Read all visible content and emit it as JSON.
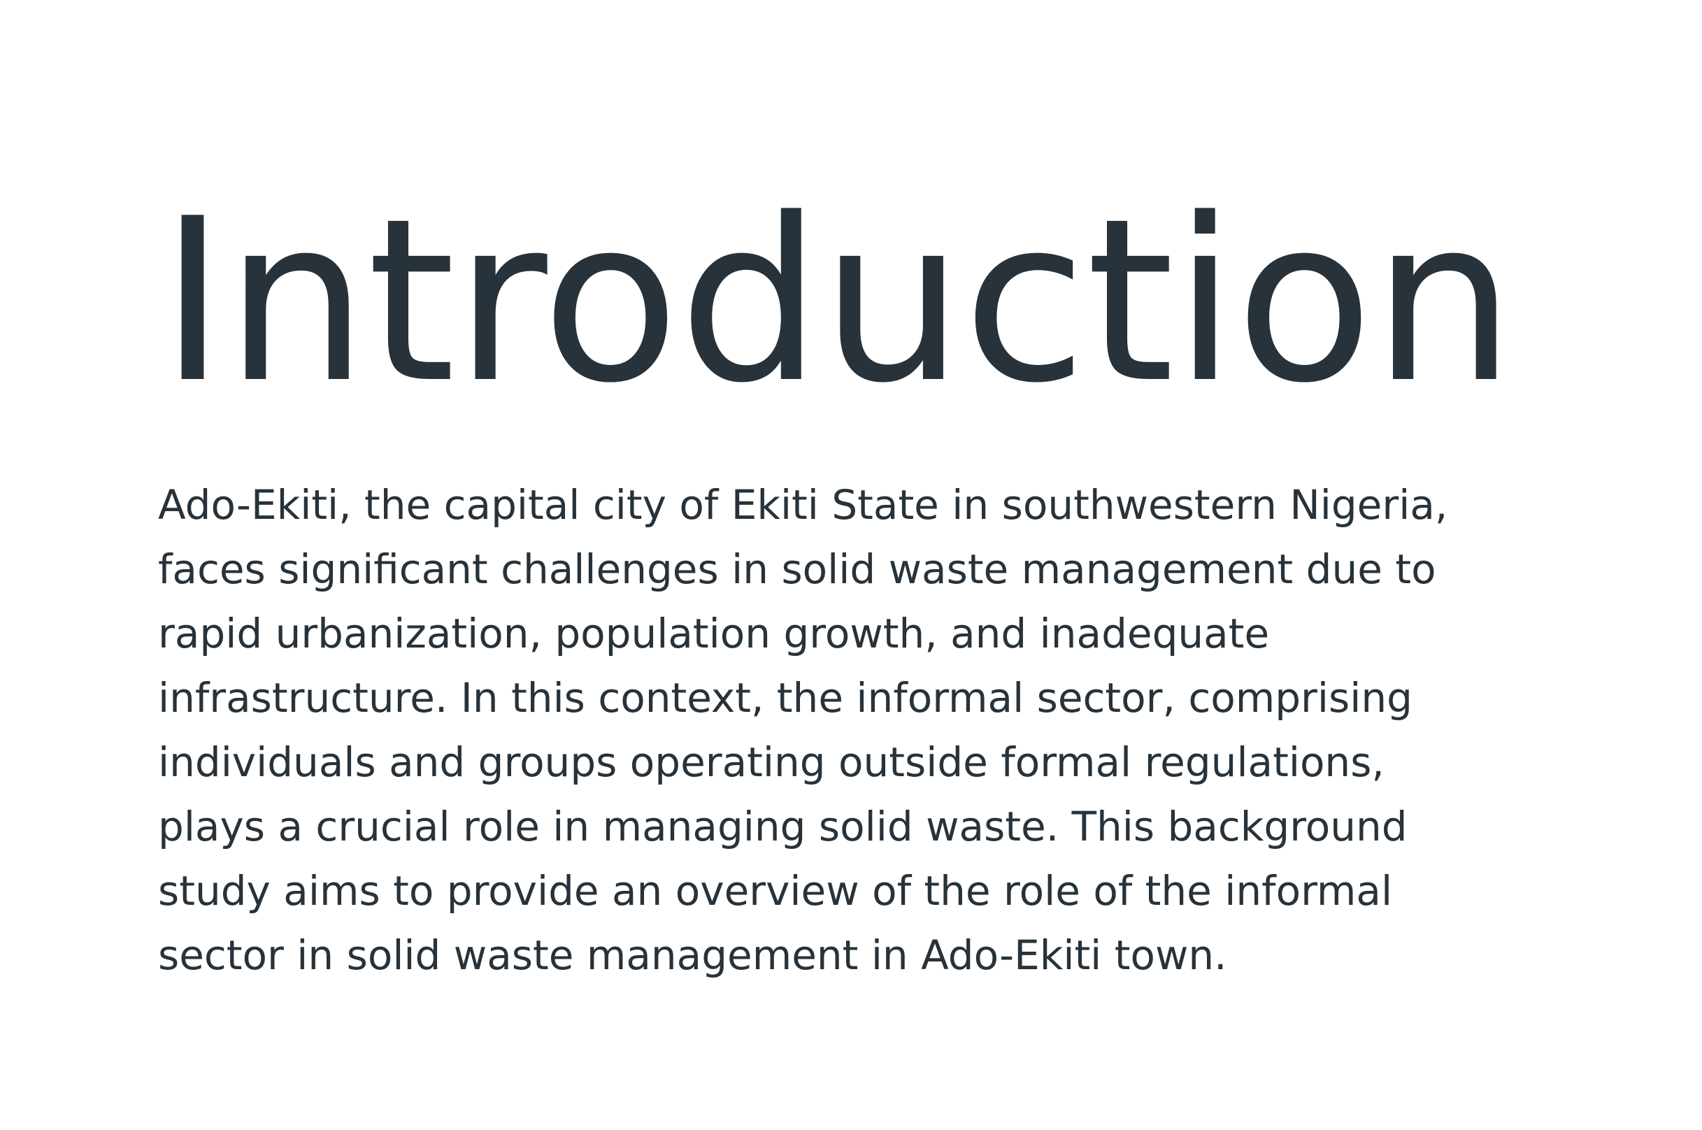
{
  "slide": {
    "title": "Introduction",
    "body_lines": [
      "Ado-Ekiti, the capital city of Ekiti State in southwestern Nigeria,",
      "faces significant challenges in solid waste management due to",
      "rapid urbanization, population growth, and inadequate",
      "infrastructure. In this context, the informal sector, comprising",
      "individuals and groups operating outside formal regulations,",
      "plays a crucial role in managing solid waste. This background",
      "study aims to provide an overview of the role of the informal",
      "sector in solid waste management in Ado-Ekiti town."
    ],
    "text_color": "#27323a",
    "background_color": "#ffffff"
  }
}
